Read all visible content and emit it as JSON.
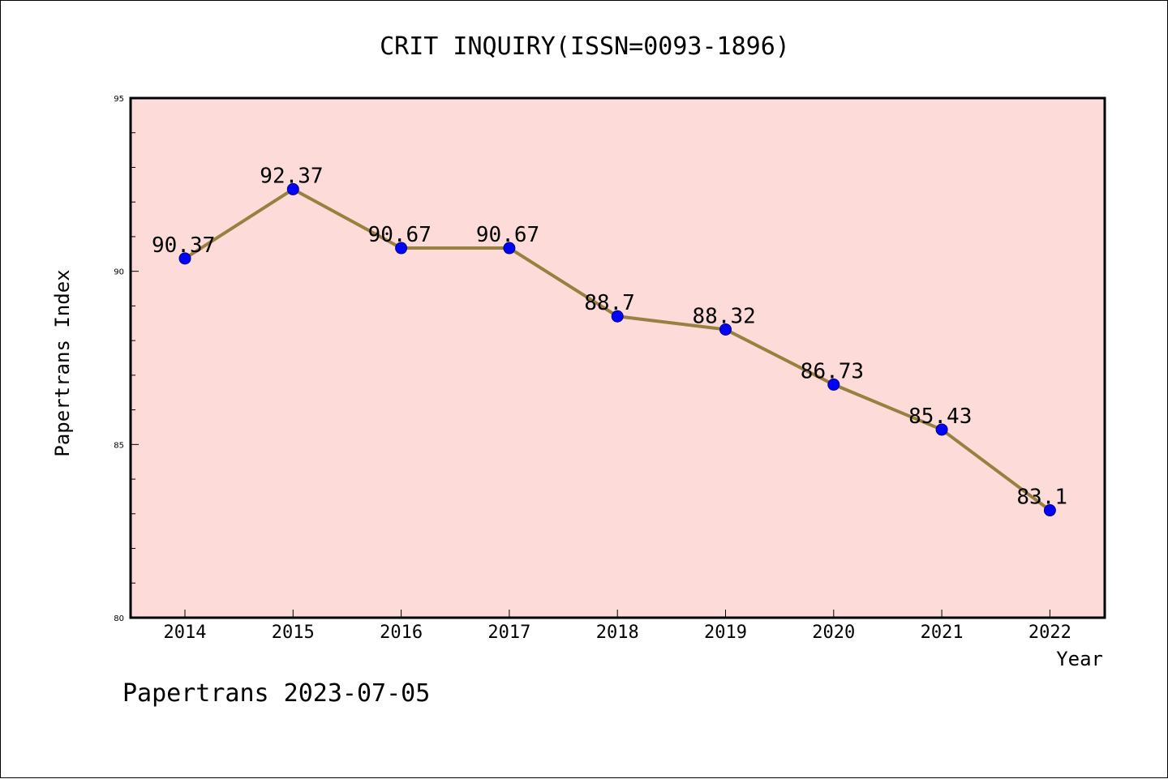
{
  "chart_data": {
    "type": "line",
    "title": "CRIT INQUIRY(ISSN=0093-1896)",
    "xlabel": "Year",
    "ylabel": "Papertrans Index",
    "categories": [
      "2014",
      "2015",
      "2016",
      "2017",
      "2018",
      "2019",
      "2020",
      "2021",
      "2022"
    ],
    "series": [
      {
        "values": [
          90.37,
          92.37,
          90.67,
          90.67,
          88.7,
          88.32,
          86.73,
          85.43,
          83.1
        ],
        "labels": [
          "90.37",
          "92.37",
          "90.67",
          "90.67",
          "88.7",
          "88.32",
          "86.73",
          "85.43",
          "83.1"
        ]
      }
    ],
    "ylim": [
      80,
      95
    ],
    "yticks": [
      "80",
      "85",
      "90",
      "95"
    ],
    "grid": false,
    "legend": "none",
    "colors": {
      "plot_background": "#fddbd8",
      "line": "#9a8040",
      "marker": "#0000ff",
      "marker_edge": "#000080"
    }
  },
  "footer": {
    "text": "Papertrans 2023-07-05"
  }
}
